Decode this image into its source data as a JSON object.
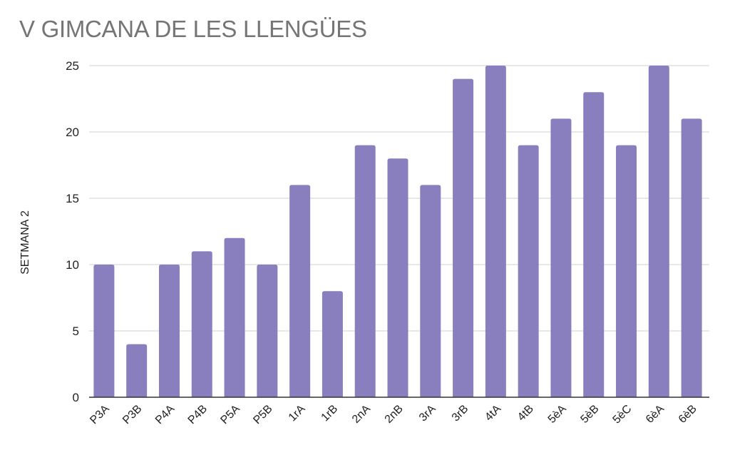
{
  "chart_data": {
    "type": "bar",
    "title": "V GIMCANA DE LES LLENGÜES",
    "xlabel": "",
    "ylabel": "SETMANA 2",
    "ylim": [
      0,
      25
    ],
    "yticks": [
      0,
      5,
      10,
      15,
      20,
      25
    ],
    "grid": true,
    "legend": "none",
    "categories": [
      "P3A",
      "P3B",
      "P4A",
      "P4B",
      "P5A",
      "P5B",
      "1rA",
      "1rB",
      "2nA",
      "2nB",
      "3rA",
      "3rB",
      "4tA",
      "4tB",
      "5èA",
      "5èB",
      "5èC",
      "6èA",
      "6èB"
    ],
    "series": [
      {
        "name": "SETMANA 2",
        "color": "#8a7fbe",
        "values": [
          10,
          4,
          10,
          11,
          12,
          10,
          16,
          8,
          19,
          18,
          16,
          24,
          25,
          19,
          21,
          23,
          19,
          25,
          21
        ]
      }
    ]
  },
  "colors": {
    "title": "#757575",
    "gridline": "#d0d0d0",
    "axis": "#333333",
    "text": "#222222"
  }
}
